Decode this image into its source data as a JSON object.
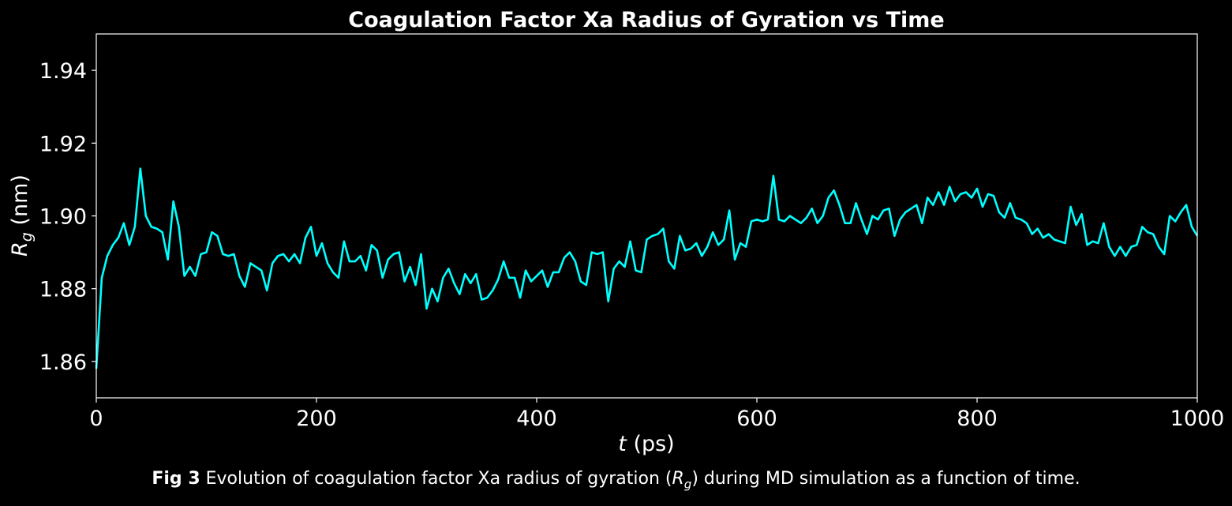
{
  "chart_data": {
    "type": "line",
    "title": "Coagulation Factor Xa Radius of Gyration vs Time",
    "xlabel": {
      "italic": "t",
      "rest": " (ps)"
    },
    "ylabel": {
      "symbol": "R",
      "subscript": "g",
      "rest": " (nm)"
    },
    "xlim": [
      0,
      1000
    ],
    "ylim": [
      1.85,
      1.95
    ],
    "xticks": [
      0,
      200,
      400,
      600,
      800,
      1000
    ],
    "yticks": [
      1.86,
      1.88,
      1.9,
      1.92,
      1.94
    ],
    "ytick_labels": [
      "1.86",
      "1.88",
      "1.90",
      "1.92",
      "1.94"
    ],
    "grid": false,
    "colors": {
      "background": "#000000",
      "line": "#00ffff",
      "axes": "#ffffff",
      "text": "#ffffff"
    },
    "series": [
      {
        "x": [
          0,
          5,
          10,
          15,
          20,
          25,
          30,
          35,
          40,
          45,
          50,
          55,
          60,
          65,
          70,
          75,
          80,
          85,
          90,
          95,
          100,
          105,
          110,
          115,
          120,
          125,
          130,
          135,
          140,
          145,
          150,
          155,
          160,
          165,
          170,
          175,
          180,
          185,
          190,
          195,
          200,
          205,
          210,
          215,
          220,
          225,
          230,
          235,
          240,
          245,
          250,
          255,
          260,
          265,
          270,
          275,
          280,
          285,
          290,
          295,
          300,
          305,
          310,
          315,
          320,
          325,
          330,
          335,
          340,
          345,
          350,
          355,
          360,
          365,
          370,
          375,
          380,
          385,
          390,
          395,
          400,
          405,
          410,
          415,
          420,
          425,
          430,
          435,
          440,
          445,
          450,
          455,
          460,
          465,
          470,
          475,
          480,
          485,
          490,
          495,
          500,
          505,
          510,
          515,
          520,
          525,
          530,
          535,
          540,
          545,
          550,
          555,
          560,
          565,
          570,
          575,
          580,
          585,
          590,
          595,
          600,
          605,
          610,
          615,
          620,
          625,
          630,
          635,
          640,
          645,
          650,
          655,
          660,
          665,
          670,
          675,
          680,
          685,
          690,
          695,
          700,
          705,
          710,
          715,
          720,
          725,
          730,
          735,
          740,
          745,
          750,
          755,
          760,
          765,
          770,
          775,
          780,
          785,
          790,
          795,
          800,
          805,
          810,
          815,
          820,
          825,
          830,
          835,
          840,
          845,
          850,
          855,
          860,
          865,
          870,
          875,
          880,
          885,
          890,
          895,
          900,
          905,
          910,
          915,
          920,
          925,
          930,
          935,
          940,
          945,
          950,
          955,
          960,
          965,
          970,
          975,
          980,
          985,
          990,
          995,
          1000
        ],
        "values": [
          1.858,
          1.883,
          1.889,
          1.892,
          1.894,
          1.898,
          1.892,
          1.897,
          1.913,
          1.9,
          1.897,
          1.8965,
          1.8955,
          1.888,
          1.904,
          1.897,
          1.8835,
          1.886,
          1.8835,
          1.8895,
          1.89,
          1.8955,
          1.8945,
          1.8895,
          1.889,
          1.8895,
          1.8835,
          1.8805,
          1.887,
          1.886,
          1.885,
          1.8795,
          1.887,
          1.889,
          1.8895,
          1.8875,
          1.8895,
          1.887,
          1.894,
          1.897,
          1.889,
          1.8925,
          1.887,
          1.8845,
          1.883,
          1.893,
          1.8875,
          1.8875,
          1.889,
          1.885,
          1.892,
          1.8905,
          1.883,
          1.888,
          1.8895,
          1.89,
          1.882,
          1.886,
          1.881,
          1.8895,
          1.8745,
          1.88,
          1.8765,
          1.883,
          1.8855,
          1.8815,
          1.8785,
          1.884,
          1.8815,
          1.884,
          1.877,
          1.8775,
          1.8795,
          1.8825,
          1.8875,
          1.883,
          1.883,
          1.8775,
          1.885,
          1.882,
          1.8835,
          1.885,
          1.8805,
          1.8845,
          1.8845,
          1.8885,
          1.89,
          1.8875,
          1.882,
          1.881,
          1.89,
          1.8895,
          1.89,
          1.8765,
          1.8855,
          1.8875,
          1.886,
          1.893,
          1.885,
          1.8845,
          1.8935,
          1.8945,
          1.895,
          1.8965,
          1.8875,
          1.8855,
          1.8945,
          1.8905,
          1.891,
          1.8925,
          1.889,
          1.8915,
          1.8955,
          1.892,
          1.8935,
          1.9015,
          1.888,
          1.8925,
          1.8915,
          1.8985,
          1.899,
          1.8985,
          1.899,
          1.911,
          1.899,
          1.8985,
          1.9,
          1.899,
          1.898,
          1.8995,
          1.902,
          1.898,
          1.9,
          1.905,
          1.907,
          1.903,
          1.898,
          1.898,
          1.9035,
          1.899,
          1.895,
          1.9,
          1.899,
          1.9015,
          1.902,
          1.8945,
          1.899,
          1.901,
          1.902,
          1.903,
          1.898,
          1.905,
          1.903,
          1.9065,
          1.903,
          1.908,
          1.904,
          1.906,
          1.9065,
          1.905,
          1.9075,
          1.9025,
          1.906,
          1.9055,
          1.901,
          1.8995,
          1.9035,
          1.8995,
          1.899,
          1.898,
          1.895,
          1.8965,
          1.894,
          1.895,
          1.8935,
          1.893,
          1.8925,
          1.9025,
          1.8975,
          1.9005,
          1.892,
          1.893,
          1.8925,
          1.898,
          1.8915,
          1.889,
          1.8915,
          1.889,
          1.8915,
          1.892,
          1.897,
          1.8955,
          1.895,
          1.8915,
          1.8895,
          1.9,
          1.8985,
          1.901,
          1.903,
          1.897,
          1.8945
        ]
      }
    ]
  },
  "caption": {
    "label": "Fig 3",
    "text_before": " Evolution of coagulation factor Xa radius of gyration (",
    "symbol": "R",
    "subscript": "g",
    "text_after": ") during MD simulation as a function of time."
  }
}
